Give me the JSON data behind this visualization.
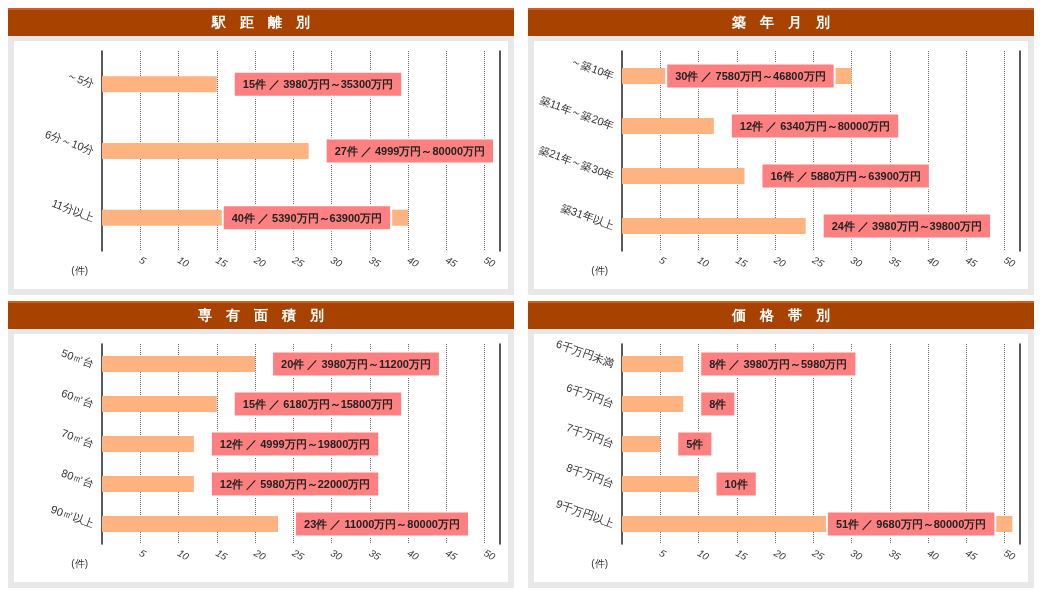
{
  "chart_data": [
    {
      "type": "bar",
      "title": "駅　距　離　別",
      "orientation": "horizontal",
      "categories": [
        "～5分",
        "6分～10分",
        "11分以上"
      ],
      "values": [
        15,
        27,
        40
      ],
      "value_labels": [
        "15件 ／ 3980万円～35300万円",
        "27件 ／ 4999万円～80000万円",
        "40件 ／ 5390万円～63900万円"
      ],
      "color": "#ffb380",
      "xlabel": "(件)",
      "xlim": [
        0,
        52
      ],
      "xticks": [
        5,
        10,
        15,
        20,
        25,
        30,
        35,
        40,
        45,
        50
      ],
      "grid": "x"
    },
    {
      "type": "bar",
      "title": "築　年　月　別",
      "orientation": "horizontal",
      "categories": [
        "～築10年",
        "築11年～築20年",
        "築21年～築30年",
        "築31年以上"
      ],
      "values": [
        30,
        12,
        16,
        24
      ],
      "value_labels": [
        "30件 ／ 7580万円～46800万円",
        "12件 ／ 6340万円～80000万円",
        "16件 ／ 5880万円～63900万円",
        "24件 ／ 3980万円～39800万円"
      ],
      "color": "#ffb380",
      "xlabel": "(件)",
      "xlim": [
        0,
        52
      ],
      "xticks": [
        5,
        10,
        15,
        20,
        25,
        30,
        35,
        40,
        45,
        50
      ],
      "grid": "x"
    },
    {
      "type": "bar",
      "title": "専　有　面　積　別",
      "orientation": "horizontal",
      "categories": [
        "50㎡台",
        "60㎡台",
        "70㎡台",
        "80㎡台",
        "90㎡以上"
      ],
      "values": [
        20,
        15,
        12,
        12,
        23
      ],
      "value_labels": [
        "20件 ／ 3980万円～11200万円",
        "15件 ／ 6180万円～15800万円",
        "12件 ／ 4999万円～19800万円",
        "12件 ／ 5980万円～22000万円",
        "23件 ／ 11000万円～80000万円"
      ],
      "color": "#ffb380",
      "xlabel": "(件)",
      "xlim": [
        0,
        52
      ],
      "xticks": [
        5,
        10,
        15,
        20,
        25,
        30,
        35,
        40,
        45,
        50
      ],
      "grid": "x"
    },
    {
      "type": "bar",
      "title": "価　格　帯　別",
      "orientation": "horizontal",
      "categories": [
        "6千万円未満",
        "6千万円台",
        "7千万円台",
        "8千万円台",
        "9千万円以上"
      ],
      "values": [
        8,
        8,
        5,
        10,
        51
      ],
      "value_labels": [
        "8件 ／ 3980万円～5980万円",
        "8件",
        "5件",
        "10件",
        "51件 ／ 9680万円～80000万円"
      ],
      "color": "#ffb380",
      "xlabel": "(件)",
      "xlim": [
        0,
        52
      ],
      "xticks": [
        5,
        10,
        15,
        20,
        25,
        30,
        35,
        40,
        45,
        50
      ],
      "grid": "x"
    }
  ]
}
